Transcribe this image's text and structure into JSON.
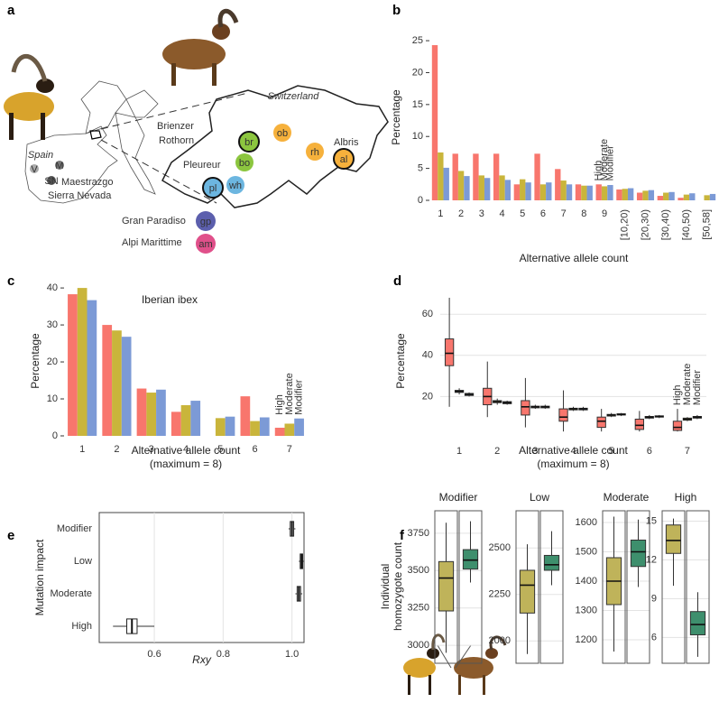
{
  "panel_labels": [
    "a",
    "b",
    "c",
    "d",
    "e",
    "f"
  ],
  "map": {
    "texts": [
      "Switzerland",
      "Spain",
      "Brienzer",
      "Rothorn",
      "Pleureur",
      "Albris",
      "Maestrazgo",
      "Sierra Nevada",
      "Gran Paradiso",
      "Alpi Marittime"
    ],
    "nodes": [
      "br",
      "bo",
      "ob",
      "rh",
      "al",
      "pl",
      "wh",
      "gp",
      "am",
      "V",
      "M",
      "SN"
    ]
  },
  "chart_data": [
    {
      "type": "bar",
      "x_label": [
        "Alternative allele count"
      ],
      "y_label": "Percentage",
      "categories": [
        "1",
        "2",
        "3",
        "4",
        "5",
        "6",
        "7",
        "8",
        "9",
        "[10,20)",
        "[20,30)",
        "[30,40)",
        "[40,50)",
        "[50,58]"
      ],
      "series": [
        {
          "name": "High",
          "color": "#f8766d",
          "values": [
            24.3,
            7.3,
            7.3,
            7.3,
            2.5,
            7.3,
            4.9,
            2.5,
            2.5,
            1.7,
            1.2,
            0.7,
            0.4,
            null
          ]
        },
        {
          "name": "Moderate",
          "color": "#c9b53b",
          "values": [
            7.5,
            4.6,
            3.9,
            3.9,
            3.3,
            2.5,
            3.1,
            2.3,
            2.2,
            1.8,
            1.5,
            1.2,
            0.9,
            0.8
          ]
        },
        {
          "name": "Modifier",
          "color": "#7c9ad6",
          "values": [
            5.1,
            3.8,
            3.5,
            3.2,
            2.8,
            2.8,
            2.5,
            2.3,
            2.4,
            1.9,
            1.6,
            1.3,
            1.1,
            1.0
          ]
        }
      ],
      "ylim": [
        0,
        26
      ],
      "yticks": [
        0,
        5,
        10,
        15,
        20,
        25
      ]
    },
    {
      "type": "bar",
      "title": "Iberian ibex",
      "x_label": [
        "Alternative allele count",
        "(maximum = 8)"
      ],
      "y_label": "Percentage",
      "categories": [
        "1",
        "2",
        "3",
        "4",
        "5",
        "6",
        "7"
      ],
      "series": [
        {
          "name": "High",
          "color": "#f8766d",
          "values": [
            38.3,
            30,
            12.8,
            6.5,
            null,
            10.7,
            2.2
          ]
        },
        {
          "name": "Moderate",
          "color": "#c9b53b",
          "values": [
            40,
            28.5,
            11.7,
            8.3,
            4.8,
            4.0,
            3.3
          ]
        },
        {
          "name": "Modifier",
          "color": "#7c9ad6",
          "values": [
            36.7,
            26.8,
            12.5,
            9.5,
            5.2,
            5.0,
            4.7
          ]
        }
      ],
      "ylim": [
        0,
        41
      ],
      "yticks": [
        0,
        10,
        20,
        30,
        40
      ]
    },
    {
      "type": "box",
      "x_label": [
        "Alternative allele count",
        "(maximum = 8)"
      ],
      "y_label": "Percentage",
      "grid": true,
      "categories": [
        "1",
        "2",
        "3",
        "4",
        "5",
        "6",
        "7"
      ],
      "series": [
        {
          "name": "High",
          "color": "#f8766d",
          "values": [
            [
              15,
              35,
              41,
              48,
              68
            ],
            [
              10,
              16,
              20,
              24,
              37
            ],
            [
              5,
              11,
              15,
              18,
              29
            ],
            [
              3,
              8,
              10,
              14,
              23
            ],
            [
              3,
              5,
              8,
              10,
              14
            ],
            [
              3,
              4,
              6,
              9,
              13
            ],
            [
              3,
              3.5,
              5,
              8,
              14
            ]
          ]
        },
        {
          "name": "Moderate",
          "color": "#c9b53b",
          "values": [
            [
              21,
              22,
              22.5,
              23,
              24
            ],
            [
              16,
              17,
              17.5,
              18,
              19
            ],
            [
              14,
              14.5,
              15,
              15.3,
              16
            ],
            [
              13,
              13.5,
              14,
              14.3,
              15
            ],
            [
              10,
              10.5,
              11,
              11.3,
              12
            ],
            [
              9,
              9.5,
              10,
              10.3,
              11
            ],
            [
              8,
              8.5,
              9,
              9.5,
              10
            ]
          ]
        },
        {
          "name": "Modifier",
          "color": "#7c9ad6",
          "values": [
            [
              20,
              20.5,
              21,
              21.5,
              22
            ],
            [
              16,
              16.5,
              17,
              17.5,
              18
            ],
            [
              14,
              14.5,
              15,
              15.3,
              16
            ],
            [
              13,
              13.5,
              14,
              14.3,
              15
            ],
            [
              10.5,
              11,
              11.3,
              11.6,
              12
            ],
            [
              9.5,
              10,
              10.3,
              10.6,
              11
            ],
            [
              9,
              9.5,
              10,
              10.3,
              11
            ]
          ]
        }
      ],
      "ylim": [
        0,
        75
      ],
      "yticks": [
        20,
        40,
        60
      ]
    },
    {
      "type": "box",
      "orientation": "horizontal",
      "x_label": "Rxy",
      "y_label": "Mutation impact",
      "grid": true,
      "color": "#ffffff",
      "categories": [
        "Modifier",
        "Low",
        "Moderate",
        "High"
      ],
      "values": [
        [
          0.99,
          0.995,
          1.0,
          1.005,
          1.01
        ],
        [
          1.02,
          1.024,
          1.028,
          1.031,
          1.034
        ],
        [
          1.01,
          1.015,
          1.02,
          1.025,
          1.03
        ],
        [
          0.48,
          0.52,
          0.535,
          0.55,
          0.6
        ]
      ],
      "xlim": [
        0.44,
        1.035
      ],
      "xticks": [
        0.6,
        0.8,
        {
          "value": 1,
          "label": "1.0"
        }
      ]
    },
    {
      "type": "box",
      "y_label": [
        "Individual",
        "homozygote count"
      ],
      "grid": true,
      "facets": [
        {
          "title": "Modifier",
          "ylim": [
            2880,
            3900
          ],
          "yticks": [
            3000,
            3250,
            3500,
            3750
          ],
          "series": [
            {
              "color": "#bfb35a",
              "values": [
                2950,
                3230,
                3450,
                3560,
                3820
              ]
            },
            {
              "color": "#3e8f6d",
              "values": [
                3420,
                3510,
                3570,
                3640,
                3830
              ]
            }
          ]
        },
        {
          "title": "Low",
          "ylim": [
            1880,
            2700
          ],
          "yticks": [
            2000,
            2250,
            2500
          ],
          "series": [
            {
              "color": "#bfb35a",
              "values": [
                1930,
                2150,
                2300,
                2380,
                2520
              ]
            },
            {
              "color": "#3e8f6d",
              "values": [
                2300,
                2380,
                2410,
                2460,
                2590
              ]
            }
          ]
        },
        {
          "title": "Moderate",
          "ylim": [
            1120,
            1640
          ],
          "yticks": [
            1200,
            1300,
            1400,
            1500,
            1600
          ],
          "series": [
            {
              "color": "#bfb35a",
              "values": [
                1160,
                1320,
                1400,
                1480,
                1620
              ]
            },
            {
              "color": "#3e8f6d",
              "values": [
                1380,
                1450,
                1500,
                1540,
                1610
              ]
            }
          ]
        },
        {
          "title": "High",
          "ylim": [
            4,
            15.8
          ],
          "yticks": [
            6,
            9,
            12,
            15
          ],
          "series": [
            {
              "color": "#bfb35a",
              "values": [
                10,
                12.5,
                13.5,
                14.7,
                15.2
              ]
            },
            {
              "color": "#3e8f6d",
              "values": [
                4.5,
                6.2,
                7,
                8,
                9.5
              ]
            }
          ]
        }
      ]
    }
  ]
}
